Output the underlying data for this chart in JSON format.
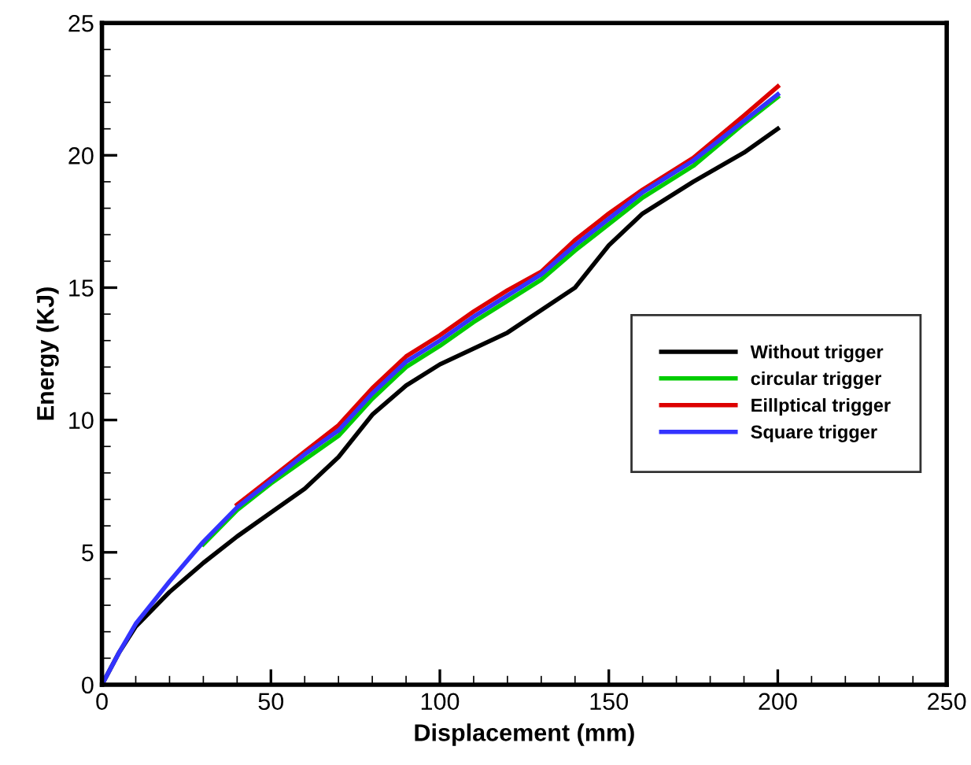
{
  "chart_data": {
    "type": "line",
    "xlabel": "Displacement (mm)",
    "ylabel": "Energy (KJ)",
    "xlim": [
      0,
      250
    ],
    "xticks": [
      0,
      50,
      100,
      150,
      200,
      250
    ],
    "ylim": [
      0,
      25
    ],
    "yticks": [
      0,
      5,
      10,
      15,
      20,
      25
    ],
    "grid": false,
    "legend": "right",
    "marker": "none",
    "line_style": "solid",
    "series": [
      {
        "name": "Without trigger",
        "color": "#000000",
        "x": [
          0,
          5,
          10,
          20,
          30,
          40,
          50,
          60,
          70,
          80,
          90,
          100,
          120,
          140,
          150,
          160,
          175,
          190,
          200
        ],
        "values": [
          0,
          1.2,
          2.2,
          3.5,
          4.6,
          5.6,
          6.5,
          7.4,
          8.6,
          10.2,
          11.3,
          12.1,
          13.3,
          15.0,
          16.6,
          17.8,
          19.0,
          20.1,
          21.0
        ]
      },
      {
        "name": "circular trigger",
        "color": "#00cc00",
        "x": [
          30,
          40,
          50,
          60,
          70,
          80,
          90,
          100,
          110,
          120,
          130,
          140,
          150,
          160,
          175,
          190,
          200
        ],
        "values": [
          5.3,
          6.6,
          7.6,
          8.5,
          9.4,
          10.8,
          12.0,
          12.8,
          13.7,
          14.5,
          15.3,
          16.4,
          17.4,
          18.4,
          19.6,
          21.2,
          22.2
        ]
      },
      {
        "name": "Eillptical trigger",
        "color": "#dd0000",
        "x": [
          40,
          50,
          60,
          70,
          80,
          90,
          100,
          110,
          120,
          130,
          140,
          150,
          160,
          175,
          190,
          200
        ],
        "values": [
          6.8,
          7.8,
          8.8,
          9.8,
          11.2,
          12.4,
          13.2,
          14.1,
          14.9,
          15.6,
          16.8,
          17.8,
          18.7,
          19.9,
          21.5,
          22.6
        ]
      },
      {
        "name": "Square trigger",
        "color": "#3333ff",
        "x": [
          0,
          5,
          10,
          20,
          30,
          40,
          50,
          60,
          70,
          80,
          90,
          100,
          110,
          120,
          130,
          140,
          150,
          160,
          175,
          190,
          200
        ],
        "values": [
          0,
          1.2,
          2.3,
          3.9,
          5.4,
          6.7,
          7.7,
          8.7,
          9.6,
          11.0,
          12.2,
          13.0,
          13.9,
          14.7,
          15.5,
          16.6,
          17.6,
          18.6,
          19.8,
          21.3,
          22.3
        ]
      }
    ]
  }
}
